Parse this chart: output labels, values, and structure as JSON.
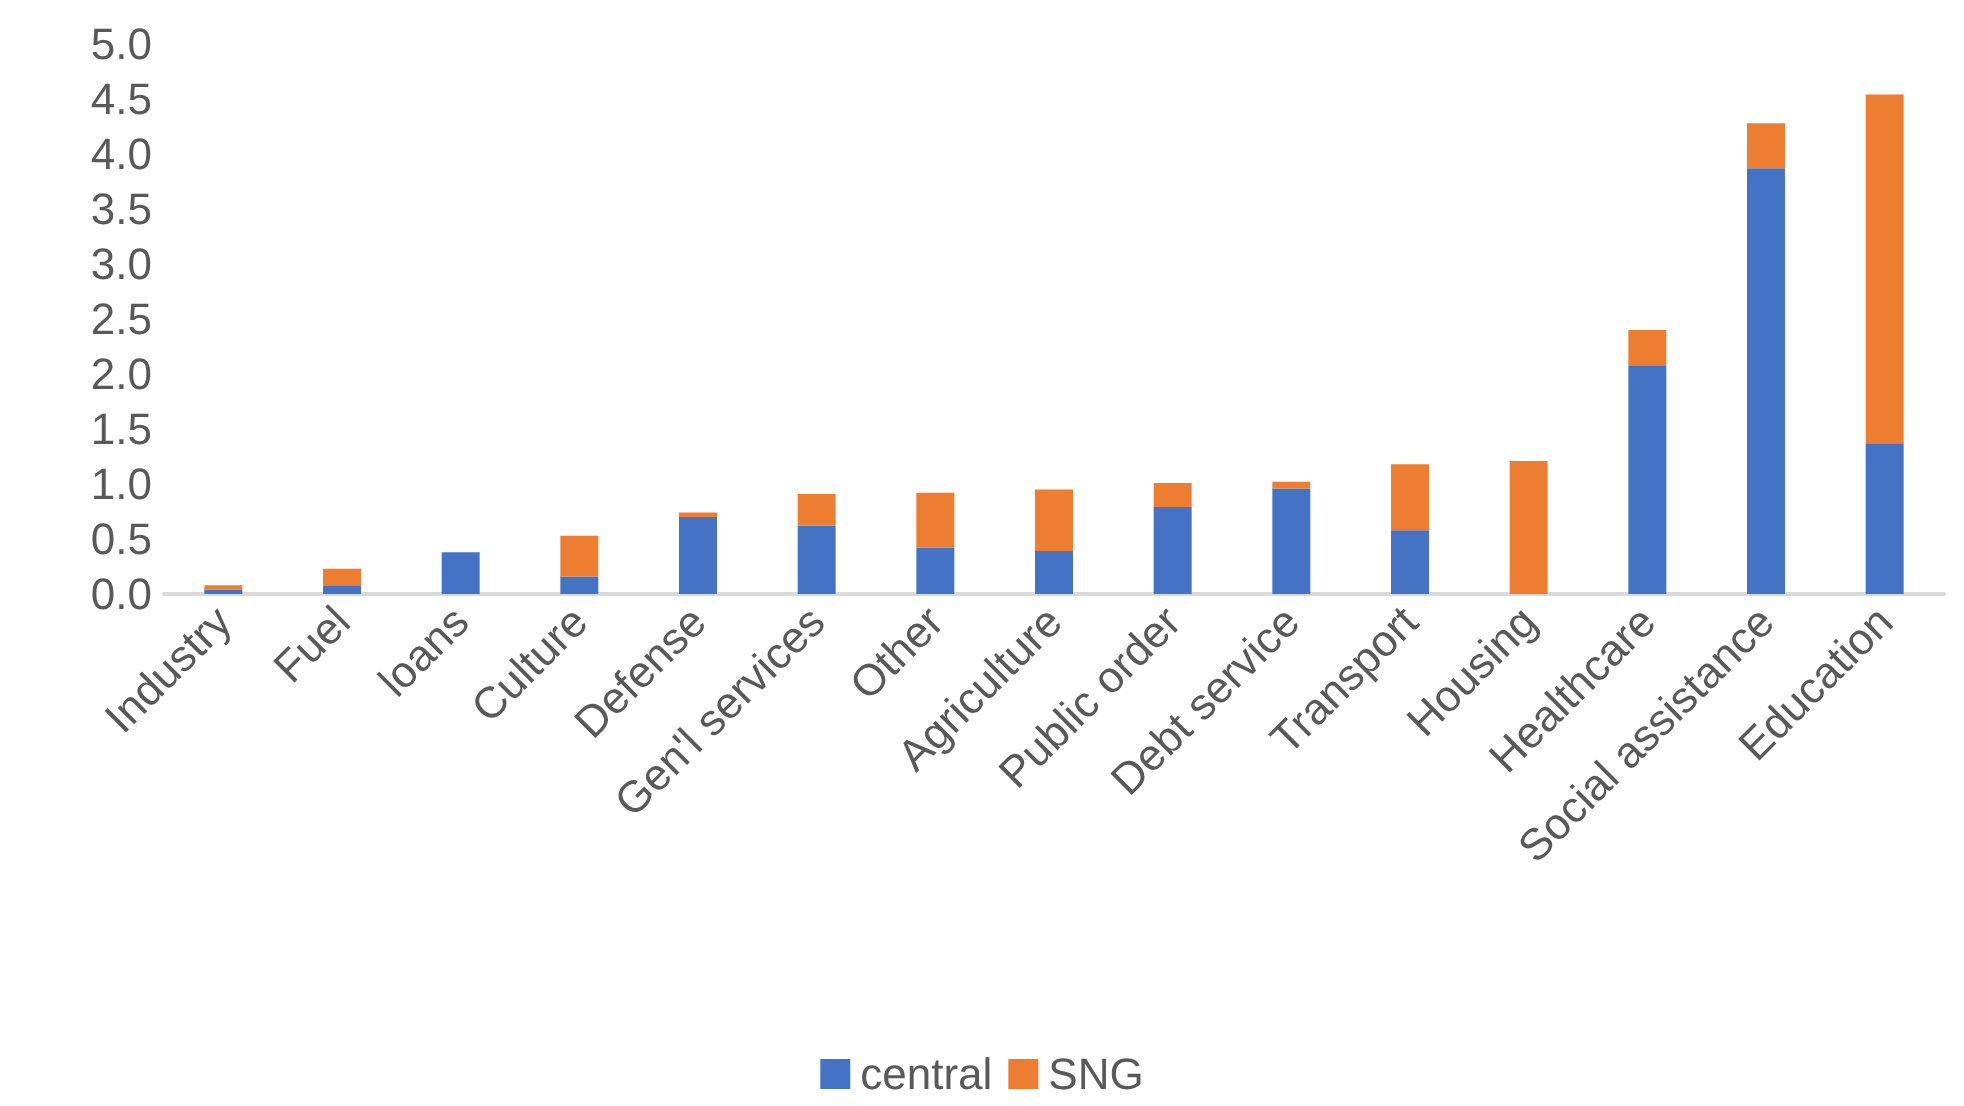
{
  "chart_data": {
    "type": "bar",
    "stacked": true,
    "categories": [
      "Industry",
      "Fuel",
      "loans",
      "Culture",
      "Defense",
      "Gen'l services",
      "Other",
      "Agriculture",
      "Public order",
      "Debt service",
      "Transport",
      "Housing",
      "Healthcare",
      "Social assistance",
      "Education"
    ],
    "series": [
      {
        "name": "central",
        "color": "#4472c4",
        "values": [
          0.04,
          0.08,
          0.38,
          0.16,
          0.7,
          0.62,
          0.42,
          0.39,
          0.79,
          0.96,
          0.58,
          0,
          2.08,
          3.87,
          1.37
        ]
      },
      {
        "name": "SNG",
        "color": "#ed7d31",
        "values": [
          0.04,
          0.15,
          0,
          0.37,
          0.04,
          0.29,
          0.5,
          0.56,
          0.22,
          0.06,
          0.6,
          1.21,
          0.32,
          0.41,
          3.17
        ]
      }
    ],
    "ylim": [
      0,
      5
    ],
    "yticks": [
      {
        "value": 0,
        "label": "0.0"
      },
      0.5,
      {
        "value": 1,
        "label": "1.0"
      },
      1.5,
      {
        "value": 2,
        "label": "2.0"
      },
      2.5,
      {
        "value": 3,
        "label": "3.0"
      },
      3.5,
      {
        "value": 4,
        "label": "4.0"
      },
      4.5,
      {
        "value": 5,
        "label": "5.0"
      }
    ],
    "grid": false,
    "legend": "bottom"
  }
}
